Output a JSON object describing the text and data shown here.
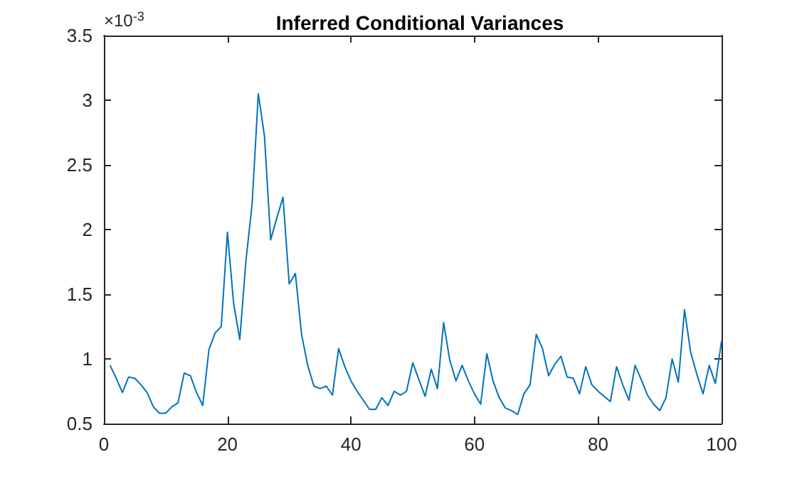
{
  "chart_data": {
    "type": "line",
    "title": "Inferred Conditional Variances",
    "annotations": [
      "×10$^{-3}$"
    ],
    "x": [
      1,
      2,
      3,
      4,
      5,
      6,
      7,
      8,
      9,
      10,
      11,
      12,
      13,
      14,
      15,
      16,
      17,
      18,
      19,
      20,
      21,
      22,
      23,
      24,
      25,
      26,
      27,
      28,
      29,
      30,
      31,
      32,
      33,
      34,
      35,
      36,
      37,
      38,
      39,
      40,
      41,
      42,
      43,
      44,
      45,
      46,
      47,
      48,
      49,
      50,
      51,
      52,
      53,
      54,
      55,
      56,
      57,
      58,
      59,
      60,
      61,
      62,
      63,
      64,
      65,
      66,
      67,
      68,
      69,
      70,
      71,
      72,
      73,
      74,
      75,
      76,
      77,
      78,
      79,
      80,
      81,
      82,
      83,
      84,
      85,
      86,
      87,
      88,
      89,
      90,
      91,
      92,
      93,
      94,
      95,
      96,
      97,
      98,
      99,
      100
    ],
    "series": [
      {
        "color": "#0072bd",
        "values": [
          0.95,
          0.85,
          0.74,
          0.86,
          0.85,
          0.8,
          0.74,
          0.63,
          0.58,
          0.58,
          0.63,
          0.66,
          0.89,
          0.87,
          0.74,
          0.64,
          1.07,
          1.2,
          1.25,
          1.98,
          1.43,
          1.15,
          1.76,
          2.2,
          3.05,
          2.72,
          1.92,
          2.09,
          2.25,
          1.58,
          1.66,
          1.19,
          0.95,
          0.79,
          0.77,
          0.79,
          0.72,
          1.08,
          0.94,
          0.83,
          0.75,
          0.68,
          0.61,
          0.61,
          0.7,
          0.64,
          0.75,
          0.72,
          0.75,
          0.97,
          0.84,
          0.71,
          0.92,
          0.77,
          1.28,
          0.99,
          0.83,
          0.95,
          0.83,
          0.73,
          0.65,
          1.04,
          0.83,
          0.7,
          0.62,
          0.6,
          0.57,
          0.73,
          0.8,
          1.19,
          1.08,
          0.87,
          0.96,
          1.02,
          0.86,
          0.85,
          0.73,
          0.94,
          0.8,
          0.75,
          0.71,
          0.67,
          0.94,
          0.8,
          0.68,
          0.95,
          0.84,
          0.72,
          0.65,
          0.6,
          0.7,
          1.0,
          0.82,
          1.38,
          1.05,
          0.88,
          0.73,
          0.95,
          0.81,
          1.14
        ]
      }
    ],
    "xlim": [
      0,
      100
    ],
    "xticks": [
      0,
      20,
      40,
      60,
      80,
      100
    ],
    "ylim": [
      0.5,
      3.5
    ],
    "yticks": [
      0.5,
      1,
      1.5,
      2,
      2.5,
      3,
      3.5
    ],
    "grid": false,
    "marker": "none",
    "line_style": "solid"
  }
}
